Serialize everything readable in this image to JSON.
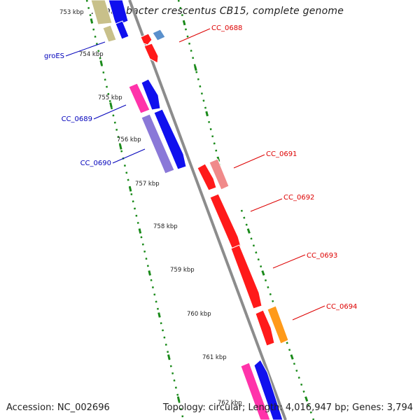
{
  "title": ". Caulobacter crescentus CB15, complete genome",
  "footer": {
    "accession": "Accession: NC_002696",
    "summary": "Topology: circular; Length: 4,016,947 bp; Genes: 3,794"
  },
  "ticks": [
    "753 kbp",
    "754 kbp",
    "755 kbp",
    "756 kbp",
    "757 kbp",
    "758 kbp",
    "759 kbp",
    "760 kbp",
    "761 kbp",
    "762 kbp"
  ],
  "gene_labels": [
    "groES",
    "CC_0689",
    "CC_0690",
    "CC_0688",
    "CC_0691",
    "CC_0692",
    "CC_0693",
    "CC_0694"
  ],
  "colors": {
    "backbone": "#8c8c8c",
    "dots": "#1a8a1a",
    "label_blue": "#0000bb",
    "label_red": "#dd0000",
    "blue": "#1010ee",
    "red": "#ff1a1a",
    "olive": "#c8c08a",
    "magenta": "#ff33aa",
    "purple": "#8a78d8",
    "pink": "#f08a8a",
    "orange": "#ff9a1a",
    "steel": "#5a90cc"
  }
}
